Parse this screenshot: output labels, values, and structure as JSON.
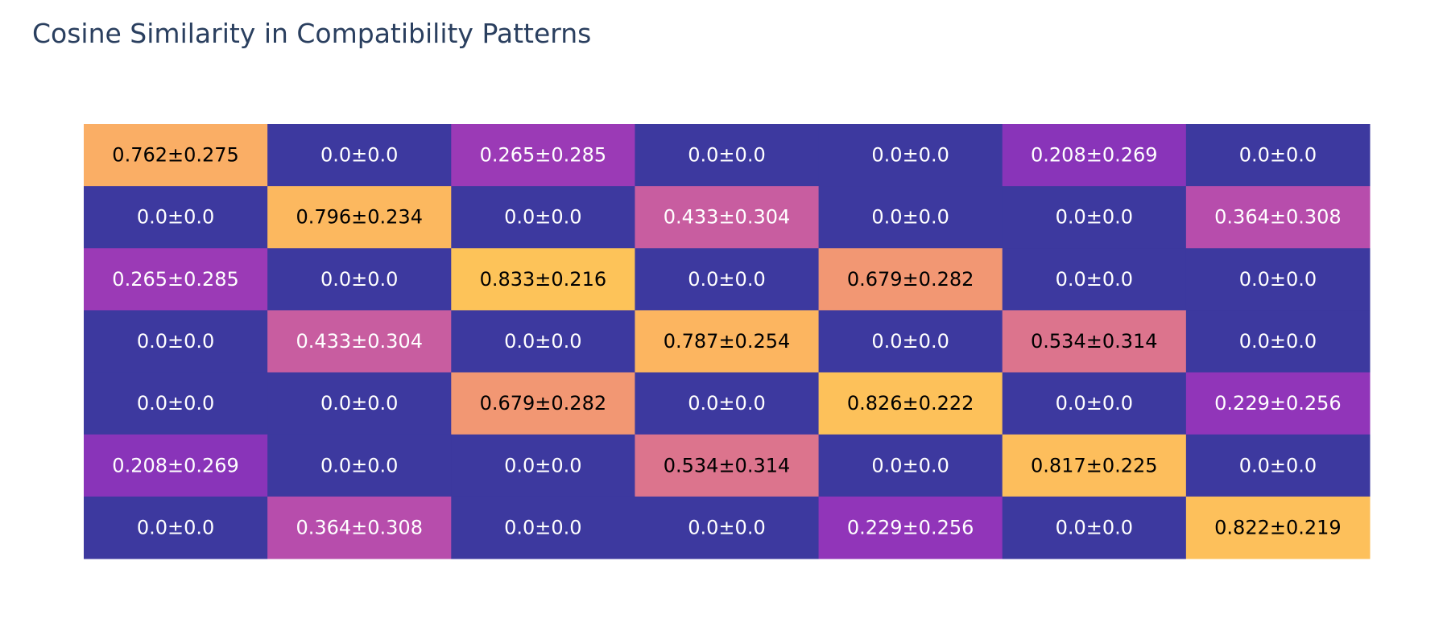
{
  "chart_data": {
    "type": "heatmap",
    "title": "Cosine Similarity in Compatibility Patterns",
    "xlabel": "",
    "ylabel": "",
    "colorscale": "plasma",
    "zmin": 0,
    "zmax": 1,
    "rows": [
      [
        "0.762±0.275",
        "0.0±0.0",
        "0.265±0.285",
        "0.0±0.0",
        "0.0±0.0",
        "0.208±0.269",
        "0.0±0.0"
      ],
      [
        "0.0±0.0",
        "0.796±0.234",
        "0.0±0.0",
        "0.433±0.304",
        "0.0±0.0",
        "0.0±0.0",
        "0.364±0.308"
      ],
      [
        "0.265±0.285",
        "0.0±0.0",
        "0.833±0.216",
        "0.0±0.0",
        "0.679±0.282",
        "0.0±0.0",
        "0.0±0.0"
      ],
      [
        "0.0±0.0",
        "0.433±0.304",
        "0.0±0.0",
        "0.787±0.254",
        "0.0±0.0",
        "0.534±0.314",
        "0.0±0.0"
      ],
      [
        "0.0±0.0",
        "0.0±0.0",
        "0.679±0.282",
        "0.0±0.0",
        "0.826±0.222",
        "0.0±0.0",
        "0.229±0.256"
      ],
      [
        "0.208±0.269",
        "0.0±0.0",
        "0.0±0.0",
        "0.534±0.314",
        "0.0±0.0",
        "0.817±0.225",
        "0.0±0.0"
      ],
      [
        "0.0±0.0",
        "0.364±0.308",
        "0.0±0.0",
        "0.0±0.0",
        "0.229±0.256",
        "0.0±0.0",
        "0.822±0.219"
      ]
    ]
  }
}
